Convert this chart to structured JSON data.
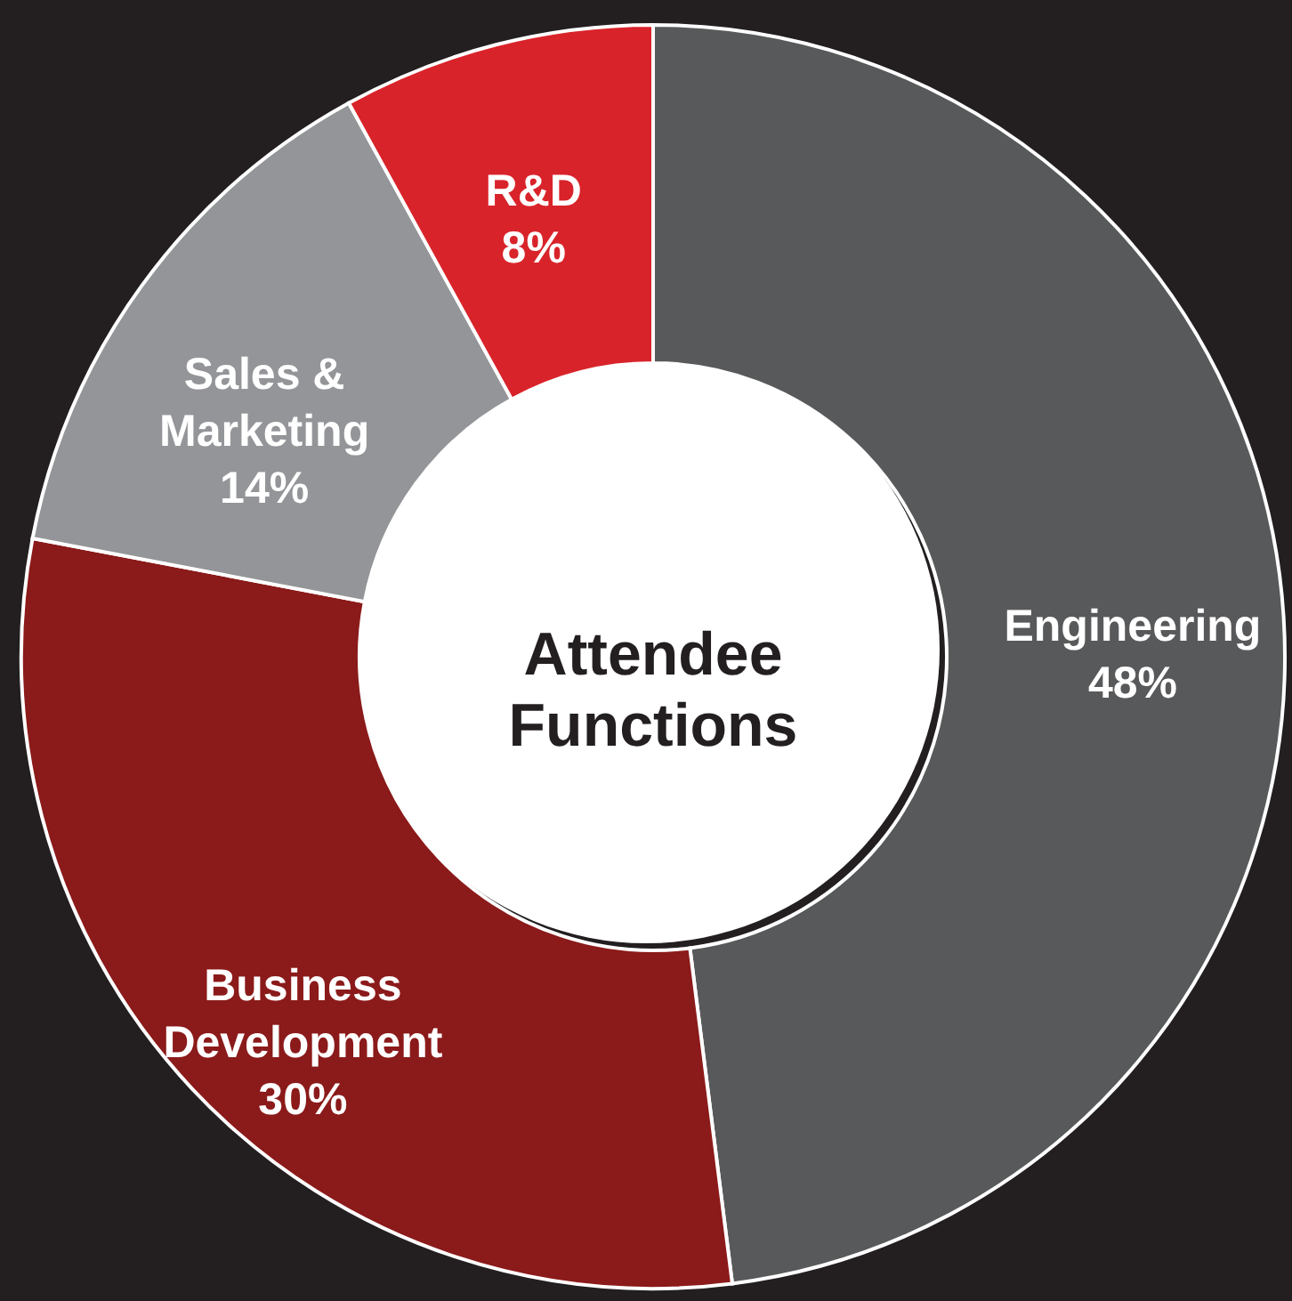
{
  "chart_data": {
    "type": "donut",
    "title": "Attendee Functions",
    "categories": [
      "Engineering",
      "Business Development",
      "Sales & Marketing",
      "R&D"
    ],
    "values": [
      48,
      30,
      14,
      8
    ],
    "colors": [
      "#58595b",
      "#8b1a1a",
      "#939598",
      "#d9232a"
    ],
    "value_labels": [
      "48%",
      "30%",
      "14%",
      "8%"
    ]
  }
}
